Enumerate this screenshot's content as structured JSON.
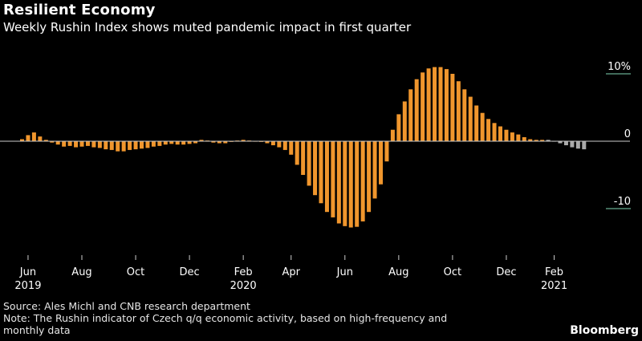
{
  "header": {
    "title": "Resilient Economy",
    "subtitle": "Weekly Rushin Index shows muted pandemic impact in first quarter"
  },
  "footer": {
    "source": "Source: Ales Michl and CNB research department",
    "note": "Note: The Rushin indicator of Czech q/q economic activity, based on high-frequency and monthly data",
    "brand": "Bloomberg"
  },
  "colors": {
    "background": "#000000",
    "bar_actual": "#f0962d",
    "bar_forecast": "#a9a9a9",
    "zero_line": "#cccccc",
    "tick_line": "#7fd6b4"
  },
  "chart_data": {
    "type": "bar",
    "title": "Resilient Economy",
    "ylim": [
      -13,
      11
    ],
    "y_ticks": [
      {
        "value": 10,
        "label": "10%"
      },
      {
        "value": 0,
        "label": "0"
      },
      {
        "value": -10,
        "label": "-10"
      }
    ],
    "x_ticks": [
      {
        "index": 1,
        "month": "Jun",
        "year": "2019"
      },
      {
        "index": 10,
        "month": "Aug",
        "year": ""
      },
      {
        "index": 19,
        "month": "Oct",
        "year": ""
      },
      {
        "index": 28,
        "month": "Dec",
        "year": ""
      },
      {
        "index": 37,
        "month": "Feb",
        "year": "2020"
      },
      {
        "index": 45,
        "month": "Apr",
        "year": ""
      },
      {
        "index": 54,
        "month": "Jun",
        "year": ""
      },
      {
        "index": 63,
        "month": "Aug",
        "year": ""
      },
      {
        "index": 72,
        "month": "Oct",
        "year": ""
      },
      {
        "index": 81,
        "month": "Dec",
        "year": ""
      },
      {
        "index": 89,
        "month": "Feb",
        "year": "2021"
      }
    ],
    "series": [
      {
        "values": [
          0.3,
          0.9,
          1.3,
          0.7,
          0.2,
          -0.2,
          -0.5,
          -0.8,
          -0.7,
          -0.9,
          -0.8,
          -0.7,
          -0.9,
          -1.0,
          -1.2,
          -1.3,
          -1.5,
          -1.5,
          -1.3,
          -1.2,
          -1.1,
          -1.0,
          -0.8,
          -0.7,
          -0.5,
          -0.4,
          -0.5,
          -0.5,
          -0.4,
          -0.3,
          0.2,
          0.1,
          -0.2,
          -0.3,
          -0.3,
          -0.1,
          0.1,
          0.2,
          0.1,
          0.0,
          -0.1,
          -0.3,
          -0.6,
          -0.9,
          -1.3,
          -2.0,
          -3.5,
          -5.0,
          -6.6,
          -8.0,
          -9.2,
          -10.5,
          -11.3,
          -12.2,
          -12.6,
          -12.8,
          -12.7,
          -11.9,
          -10.5,
          -8.5,
          -6.4,
          -3.0,
          1.7,
          4.0,
          5.9,
          7.7,
          9.2,
          10.2,
          10.8,
          11.0,
          11.0,
          10.7,
          10.0,
          8.9,
          7.7,
          6.6,
          5.3,
          4.2,
          3.3,
          2.7,
          2.2,
          1.7,
          1.3,
          1.0,
          0.6,
          0.3,
          0.2,
          0.2,
          0.2,
          0.0,
          -0.3,
          -0.6,
          -0.9,
          -1.1,
          -1.2
        ]
      }
    ],
    "forecast_start_index": 88
  }
}
